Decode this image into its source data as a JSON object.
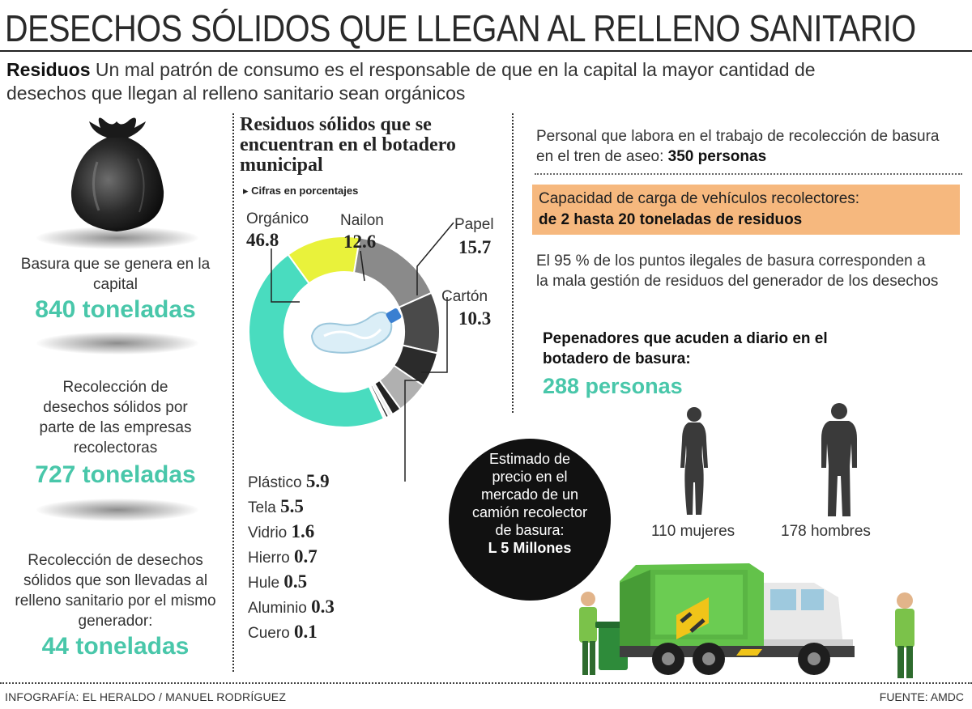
{
  "header": {
    "title": "DESECHOS SÓLIDOS QUE LLEGAN AL RELLENO SANITARIO",
    "intro_bold": "Residuos",
    "intro_text": "Un mal patrón de consumo es el responsable de que en la capital la mayor cantidad de desechos que llegan al relleno sanitario sean orgánicos"
  },
  "left": {
    "stat1_text": "Basura que se genera en la capital",
    "stat1_value": "840 toneladas",
    "stat2_text": "Recolección de desechos sólidos por parte de las empresas recolectoras",
    "stat2_value": "727 toneladas",
    "stat3_text": "Recolección de desechos sólidos que son llevadas al relleno sanitario por el mismo generador:",
    "stat3_value": "44  toneladas"
  },
  "chart_data": {
    "type": "pie",
    "title": "Residuos sólidos que se encuentran en el botadero municipal",
    "subtitle": "Cifras en porcentajes",
    "categories": [
      "Orgánico",
      "Nailon",
      "Papel",
      "Cartón",
      "Plástico",
      "Tela",
      "Vidrio",
      "Hierro",
      "Hule",
      "Aluminio",
      "Cuero"
    ],
    "values": [
      46.8,
      12.6,
      15.7,
      10.3,
      5.9,
      5.5,
      1.6,
      0.7,
      0.5,
      0.3,
      0.1
    ],
    "value_labels": [
      "46.8",
      "12.6",
      "15.7",
      "10.3",
      "5.9",
      "5.5",
      "1.6",
      "0.7",
      "0.5",
      "0.3",
      "0.1"
    ],
    "colors": [
      "#49dcbf",
      "#e9f23b",
      "#8a8a8a",
      "#4a4a4a",
      "#2b2b2b",
      "#b0b0b0",
      "#222222",
      "#eeeeee",
      "#333333",
      "#999999",
      "#111111"
    ]
  },
  "right": {
    "personal_text": "Personal que labora en el trabajo de recolección de basura en el tren de aseo:",
    "personal_value": "350 personas",
    "capacity_text": "Capacidad de carga de vehículos recolectores:",
    "capacity_value": "de 2  hasta 20 toneladas de residuos",
    "illegal_text": "El 95 % de los puntos ilegales de basura corresponden a la mala gestión de residuos del generador de los desechos",
    "pepenadores_text": "Pepenadores que acuden a diario en el botadero de basura:",
    "pepenadores_value": "288 personas",
    "women_label": "110 mujeres",
    "men_label": "178 hombres",
    "price_text": "Estimado de precio en el mercado de un camión recolector de basura:",
    "price_value": "L 5 Millones"
  },
  "footer": {
    "credit": "INFOGRAFÍA: EL HERALDO / MANUEL RODRÍGUEZ",
    "source": "FUENTE: AMDC"
  },
  "icons": [
    "garbage-bag-icon",
    "plastic-bottle-icon",
    "woman-silhouette-icon",
    "man-silhouette-icon",
    "garbage-truck-icon",
    "worker-icon"
  ],
  "accent_colors": {
    "teal": "#49c7aa",
    "orange": "#f6b87e",
    "green": "#63c24a"
  }
}
